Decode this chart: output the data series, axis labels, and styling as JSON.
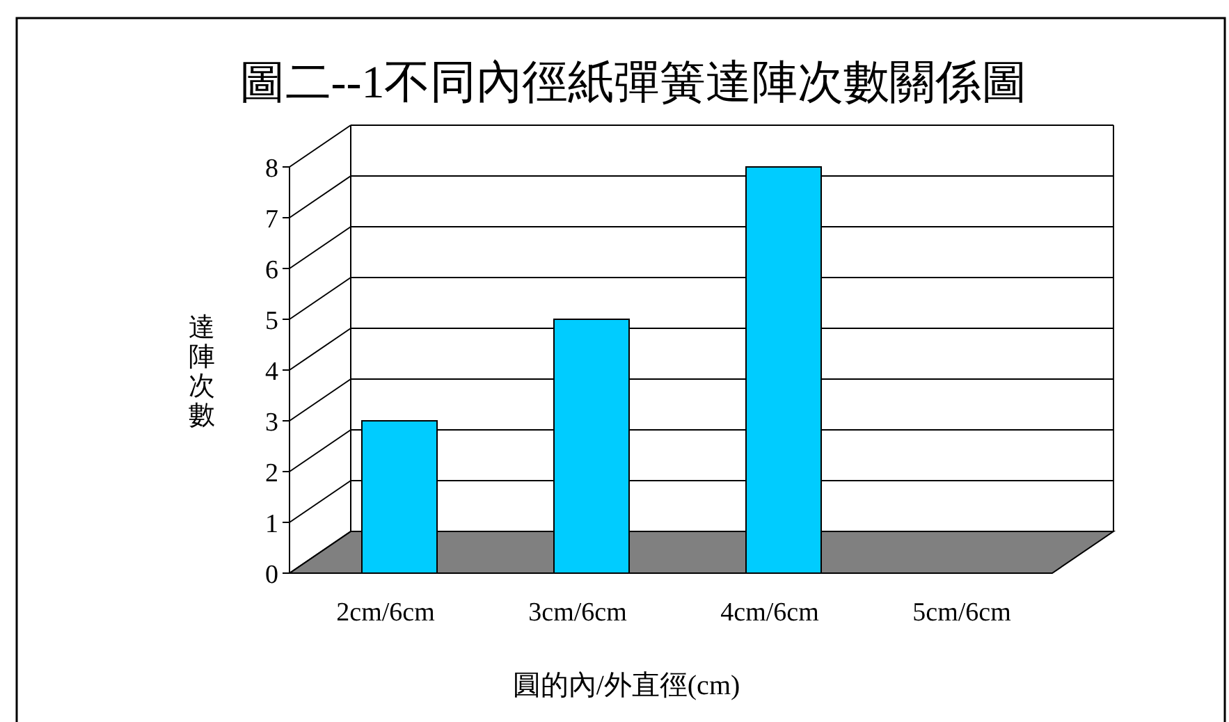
{
  "chart_data": {
    "type": "bar",
    "title": "圖二--1不同內徑紙彈簧達陣次數關係圖",
    "xlabel": "圓的內/外直徑(cm)",
    "ylabel": "達陣次數",
    "categories": [
      "2cm/6cm",
      "3cm/6cm",
      "4cm/6cm",
      "5cm/6cm"
    ],
    "values": [
      3,
      5,
      8,
      0
    ],
    "color": "#00ccff",
    "ylim": [
      0,
      8
    ],
    "yticks": [
      0,
      1,
      2,
      3,
      4,
      5,
      6,
      7,
      8
    ],
    "grid": "y"
  }
}
